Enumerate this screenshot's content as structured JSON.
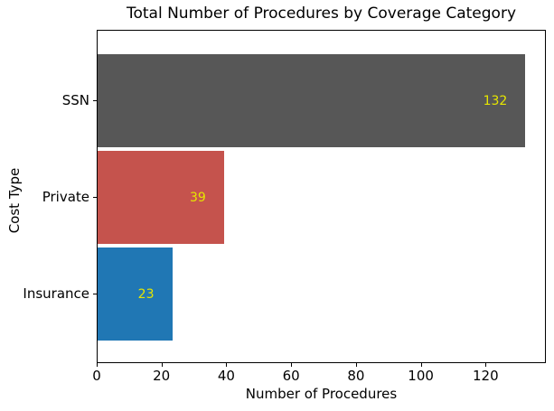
{
  "chart_data": {
    "type": "bar",
    "orientation": "horizontal",
    "title": "Total Number of Procedures by Coverage Category",
    "xlabel": "Number of Procedures",
    "ylabel": "Cost Type",
    "categories": [
      "SSN",
      "Private",
      "Insurance"
    ],
    "values": [
      132,
      39,
      23
    ],
    "bar_colors": [
      "#575757",
      "#c5534d",
      "#2077b4"
    ],
    "value_label_color": "#e6e600",
    "xlim": [
      0,
      138.6
    ],
    "xticks": [
      0,
      20,
      40,
      60,
      80,
      100,
      120
    ],
    "grid": false,
    "legend": false,
    "background_color": "#ffffff",
    "spine_color": "#000000"
  }
}
